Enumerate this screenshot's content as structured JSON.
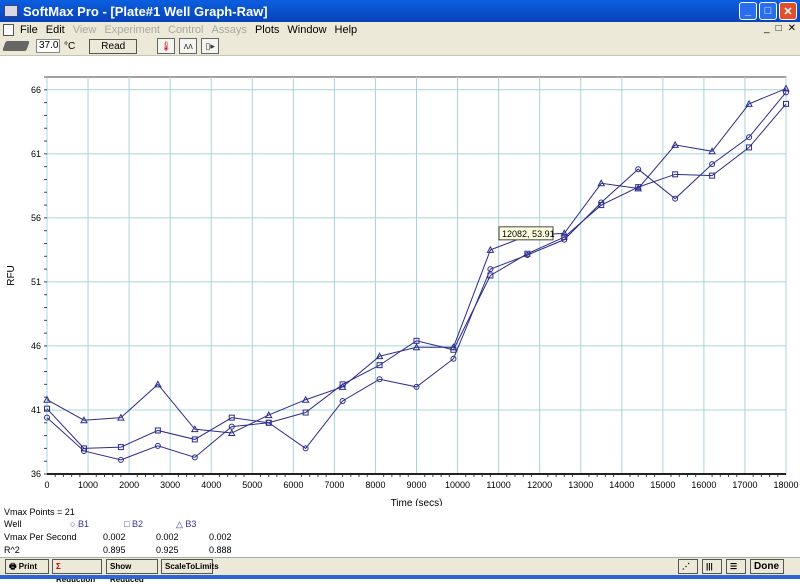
{
  "window": {
    "title": "SoftMax Pro - [Plate#1 Well Graph-Raw]",
    "minimize": "_",
    "maximize": "□",
    "close": "✕"
  },
  "menu": {
    "items": [
      {
        "label": "File",
        "enabled": true
      },
      {
        "label": "Edit",
        "enabled": true
      },
      {
        "label": "View",
        "enabled": false
      },
      {
        "label": "Experiment",
        "enabled": false
      },
      {
        "label": "Control",
        "enabled": false
      },
      {
        "label": "Assays",
        "enabled": false
      },
      {
        "label": "Plots",
        "enabled": true
      },
      {
        "label": "Window",
        "enabled": true
      },
      {
        "label": "Help",
        "enabled": true
      }
    ],
    "mdi": [
      "_",
      "□",
      "✕"
    ]
  },
  "toolbar": {
    "temperature": "37.0",
    "temp_unit": "°C",
    "read_label": "Read",
    "icons": [
      "thermometer-icon",
      "kinetic-icon",
      "plate-carrier-icon"
    ]
  },
  "tooltip": "12082, 53.91",
  "chart_data": {
    "type": "line",
    "xlabel": "Time (secs)",
    "ylabel": "RFU",
    "xlim": [
      0,
      18000
    ],
    "ylim": [
      36,
      67
    ],
    "grid": true,
    "xticks": [
      0,
      1000,
      2000,
      3000,
      4000,
      5000,
      6000,
      7000,
      8000,
      9000,
      10000,
      11000,
      12000,
      13000,
      14000,
      15000,
      16000,
      17000,
      18000
    ],
    "yticks": [
      36,
      41,
      46,
      51,
      56,
      61,
      66
    ],
    "x": [
      0,
      900,
      1800,
      2700,
      3600,
      4500,
      5400,
      6300,
      7200,
      8100,
      9000,
      9900,
      10800,
      11700,
      12600,
      13500,
      14400,
      15300,
      16200,
      17100,
      18000
    ],
    "series": [
      {
        "name": "B1",
        "marker": "circle",
        "values": [
          40.4,
          37.8,
          37.1,
          38.2,
          37.3,
          39.7,
          40.0,
          38.0,
          41.7,
          43.4,
          42.8,
          45.0,
          52.0,
          53.1,
          54.3,
          57.2,
          59.8,
          57.5,
          60.2,
          62.3,
          65.8
        ]
      },
      {
        "name": "B2",
        "marker": "square",
        "values": [
          41.1,
          38.0,
          38.1,
          39.4,
          38.7,
          40.4,
          40.0,
          40.8,
          43.0,
          44.5,
          46.4,
          45.7,
          51.5,
          53.2,
          54.5,
          57.0,
          58.4,
          59.4,
          59.3,
          61.5,
          64.9
        ]
      },
      {
        "name": "B3",
        "marker": "triangle",
        "values": [
          41.8,
          40.2,
          40.4,
          43.0,
          39.5,
          39.2,
          40.6,
          41.8,
          42.8,
          45.2,
          45.9,
          45.9,
          53.5,
          54.6,
          54.8,
          58.7,
          58.3,
          61.7,
          61.2,
          64.9,
          66.1
        ]
      }
    ],
    "colors": {
      "line": "#2b2b8a",
      "grid": "#a8d4d8"
    }
  },
  "results": {
    "vmax_points": "Vmax Points = 21",
    "well_label": "Well",
    "wells": [
      "B1",
      "B2",
      "B3"
    ],
    "vmax_label": "Vmax Per Second",
    "vmax": [
      "0.002",
      "0.002",
      "0.002"
    ],
    "r2_label": "R^2",
    "r2": [
      "0.895",
      "0.925",
      "0.888"
    ]
  },
  "bottom": {
    "print": "Print",
    "reduction": "Reduction",
    "show_reduced": "Show Reduced",
    "scale": "ScaleToLimits",
    "done": "Done"
  }
}
